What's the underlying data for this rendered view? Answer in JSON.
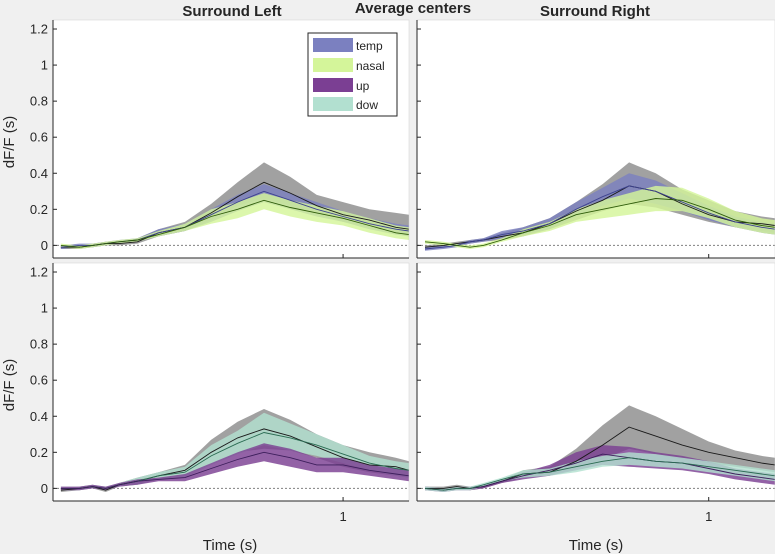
{
  "figure": {
    "title": "Average centers",
    "column_titles": [
      "Surround Left",
      "Surround Right"
    ],
    "xlabel": "Time (s)",
    "ylabel": "dF/F (s)",
    "xtick": 1,
    "xtick_label": "1",
    "yticks": [
      0,
      0.2,
      0.4,
      0.6,
      0.8,
      1,
      1.2
    ],
    "ytick_labels": [
      "0",
      "0.2",
      "0.4",
      "0.6",
      "0.8",
      "1",
      "1.2"
    ]
  },
  "legend": {
    "placement": "top-left of Surround Right column",
    "entries": [
      {
        "label": "temp",
        "color": "#7b80c0"
      },
      {
        "label": "nasal",
        "color": "#d4f59a"
      },
      {
        "label": "up",
        "color": "#7b3f93"
      },
      {
        "label": "dow",
        "color": "#b2e0d0"
      }
    ]
  },
  "chart_data": [
    {
      "type": "area",
      "panel": "top-left",
      "xlim": [
        -0.1,
        1.25
      ],
      "ylim": [
        -0.07,
        1.25
      ],
      "x": [
        -0.07,
        0.0,
        0.05,
        0.1,
        0.15,
        0.22,
        0.3,
        0.4,
        0.5,
        0.6,
        0.7,
        0.8,
        0.9,
        1.0,
        1.1,
        1.2,
        1.25
      ],
      "zero_line": true,
      "series": [
        {
          "color": "#1a1a1a",
          "band_color": "#8c8c8c",
          "mean": [
            -0.01,
            -0.01,
            0.0,
            0.01,
            0.01,
            0.02,
            0.07,
            0.1,
            0.18,
            0.27,
            0.35,
            0.29,
            0.22,
            0.17,
            0.14,
            0.1,
            0.09
          ],
          "lower": [
            -0.02,
            -0.02,
            -0.01,
            0.0,
            0.0,
            0.01,
            0.05,
            0.08,
            0.14,
            0.22,
            0.26,
            0.22,
            0.17,
            0.13,
            0.1,
            0.07,
            0.05
          ],
          "upper": [
            0.0,
            0.0,
            0.01,
            0.02,
            0.02,
            0.04,
            0.09,
            0.13,
            0.23,
            0.35,
            0.46,
            0.38,
            0.28,
            0.24,
            0.2,
            0.18,
            0.17
          ]
        },
        {
          "color": "#3d428f",
          "band_color": "#7b80c0",
          "mean": [
            -0.01,
            0.0,
            0.0,
            0.01,
            0.02,
            0.03,
            0.07,
            0.1,
            0.17,
            0.24,
            0.3,
            0.25,
            0.2,
            0.16,
            0.12,
            0.09,
            0.08
          ],
          "lower": [
            -0.02,
            -0.01,
            -0.01,
            0.0,
            0.01,
            0.02,
            0.05,
            0.08,
            0.13,
            0.19,
            0.24,
            0.2,
            0.16,
            0.13,
            0.09,
            0.06,
            0.05
          ],
          "upper": [
            0.0,
            0.01,
            0.01,
            0.02,
            0.03,
            0.04,
            0.09,
            0.12,
            0.2,
            0.28,
            0.34,
            0.29,
            0.24,
            0.19,
            0.15,
            0.12,
            0.11
          ]
        },
        {
          "color": "#2f5d0a",
          "band_color": "#d4f59a",
          "mean": [
            0.0,
            -0.01,
            0.0,
            0.01,
            0.02,
            0.03,
            0.06,
            0.1,
            0.16,
            0.2,
            0.25,
            0.21,
            0.18,
            0.15,
            0.11,
            0.07,
            0.06
          ],
          "lower": [
            -0.01,
            -0.02,
            -0.01,
            0.0,
            0.01,
            0.02,
            0.05,
            0.08,
            0.12,
            0.15,
            0.2,
            0.16,
            0.13,
            0.11,
            0.07,
            0.04,
            0.03
          ],
          "upper": [
            0.01,
            0.0,
            0.01,
            0.02,
            0.03,
            0.04,
            0.08,
            0.12,
            0.2,
            0.24,
            0.29,
            0.25,
            0.22,
            0.19,
            0.15,
            0.11,
            0.1
          ]
        }
      ]
    },
    {
      "type": "area",
      "panel": "top-right",
      "xlim": [
        -0.1,
        1.25
      ],
      "ylim": [
        -0.07,
        1.25
      ],
      "x": [
        -0.07,
        0.0,
        0.05,
        0.1,
        0.15,
        0.22,
        0.3,
        0.4,
        0.5,
        0.6,
        0.7,
        0.8,
        0.9,
        1.0,
        1.1,
        1.2,
        1.25
      ],
      "zero_line": true,
      "series": [
        {
          "color": "#1a1a1a",
          "band_color": "#8c8c8c",
          "mean": [
            -0.01,
            0.0,
            0.01,
            0.02,
            0.03,
            0.05,
            0.07,
            0.12,
            0.19,
            0.25,
            0.33,
            0.3,
            0.23,
            0.17,
            0.13,
            0.12,
            0.11
          ],
          "lower": [
            -0.02,
            -0.01,
            0.0,
            0.01,
            0.02,
            0.03,
            0.05,
            0.09,
            0.14,
            0.19,
            0.23,
            0.21,
            0.17,
            0.13,
            0.1,
            0.08,
            0.07
          ],
          "upper": [
            0.0,
            0.01,
            0.02,
            0.03,
            0.04,
            0.07,
            0.1,
            0.15,
            0.24,
            0.34,
            0.46,
            0.4,
            0.31,
            0.25,
            0.19,
            0.16,
            0.15
          ]
        },
        {
          "color": "#3d428f",
          "band_color": "#7b80c0",
          "mean": [
            -0.02,
            -0.01,
            0.0,
            0.02,
            0.03,
            0.06,
            0.08,
            0.12,
            0.2,
            0.27,
            0.33,
            0.3,
            0.24,
            0.18,
            0.13,
            0.1,
            0.09
          ],
          "lower": [
            -0.03,
            -0.02,
            -0.01,
            0.01,
            0.02,
            0.04,
            0.06,
            0.09,
            0.16,
            0.22,
            0.26,
            0.23,
            0.19,
            0.14,
            0.1,
            0.07,
            0.06
          ],
          "upper": [
            -0.01,
            0.0,
            0.01,
            0.03,
            0.04,
            0.08,
            0.1,
            0.15,
            0.24,
            0.32,
            0.4,
            0.36,
            0.29,
            0.22,
            0.16,
            0.13,
            0.12
          ]
        },
        {
          "color": "#2f5d0a",
          "band_color": "#d4f59a",
          "mean": [
            0.02,
            0.01,
            0.0,
            -0.01,
            0.0,
            0.03,
            0.07,
            0.11,
            0.17,
            0.2,
            0.23,
            0.26,
            0.25,
            0.2,
            0.14,
            0.11,
            0.1
          ],
          "lower": [
            0.01,
            0.0,
            -0.01,
            -0.02,
            -0.01,
            0.02,
            0.05,
            0.08,
            0.13,
            0.15,
            0.17,
            0.19,
            0.19,
            0.15,
            0.1,
            0.07,
            0.06
          ],
          "upper": [
            0.03,
            0.02,
            0.01,
            0.0,
            0.01,
            0.04,
            0.09,
            0.13,
            0.2,
            0.25,
            0.29,
            0.33,
            0.32,
            0.26,
            0.19,
            0.15,
            0.14
          ]
        }
      ]
    },
    {
      "type": "area",
      "panel": "bottom-left",
      "xlim": [
        -0.1,
        1.25
      ],
      "ylim": [
        -0.07,
        1.25
      ],
      "x": [
        -0.07,
        0.0,
        0.05,
        0.1,
        0.15,
        0.22,
        0.3,
        0.4,
        0.5,
        0.6,
        0.7,
        0.8,
        0.9,
        1.0,
        1.1,
        1.2,
        1.25
      ],
      "zero_line": true,
      "series": [
        {
          "color": "#1a1a1a",
          "band_color": "#8c8c8c",
          "mean": [
            -0.01,
            0.0,
            0.01,
            -0.01,
            0.02,
            0.04,
            0.07,
            0.1,
            0.2,
            0.28,
            0.33,
            0.29,
            0.23,
            0.17,
            0.13,
            0.12,
            0.1
          ],
          "lower": [
            -0.02,
            -0.01,
            0.0,
            -0.02,
            0.01,
            0.02,
            0.05,
            0.07,
            0.14,
            0.2,
            0.22,
            0.21,
            0.17,
            0.12,
            0.09,
            0.07,
            0.06
          ],
          "upper": [
            0.0,
            0.01,
            0.02,
            0.0,
            0.03,
            0.06,
            0.09,
            0.13,
            0.27,
            0.37,
            0.44,
            0.38,
            0.3,
            0.24,
            0.2,
            0.17,
            0.15
          ]
        },
        {
          "color": "#2a6b52",
          "band_color": "#b2e0d0",
          "mean": [
            0.0,
            0.0,
            0.01,
            0.0,
            0.02,
            0.04,
            0.07,
            0.09,
            0.18,
            0.25,
            0.31,
            0.28,
            0.24,
            0.19,
            0.14,
            0.11,
            0.1
          ],
          "lower": [
            -0.01,
            -0.01,
            0.0,
            -0.01,
            0.01,
            0.02,
            0.05,
            0.06,
            0.13,
            0.19,
            0.24,
            0.21,
            0.18,
            0.14,
            0.1,
            0.07,
            0.06
          ],
          "upper": [
            0.01,
            0.01,
            0.02,
            0.01,
            0.03,
            0.06,
            0.09,
            0.12,
            0.24,
            0.32,
            0.42,
            0.36,
            0.3,
            0.24,
            0.18,
            0.15,
            0.14
          ]
        },
        {
          "color": "#3d1f5c",
          "band_color": "#7b3f93",
          "mean": [
            0.0,
            0.0,
            0.01,
            0.0,
            0.02,
            0.04,
            0.05,
            0.06,
            0.11,
            0.16,
            0.2,
            0.17,
            0.13,
            0.13,
            0.1,
            0.08,
            0.07
          ],
          "lower": [
            -0.01,
            -0.01,
            0.0,
            -0.01,
            0.01,
            0.02,
            0.04,
            0.04,
            0.08,
            0.12,
            0.15,
            0.12,
            0.09,
            0.09,
            0.07,
            0.05,
            0.04
          ],
          "upper": [
            0.01,
            0.01,
            0.02,
            0.01,
            0.03,
            0.05,
            0.06,
            0.08,
            0.14,
            0.2,
            0.25,
            0.22,
            0.17,
            0.17,
            0.13,
            0.11,
            0.1
          ]
        }
      ]
    },
    {
      "type": "area",
      "panel": "bottom-right",
      "xlim": [
        -0.1,
        1.25
      ],
      "ylim": [
        -0.07,
        1.25
      ],
      "x": [
        -0.07,
        0.0,
        0.05,
        0.1,
        0.15,
        0.22,
        0.3,
        0.4,
        0.5,
        0.6,
        0.7,
        0.8,
        0.9,
        1.0,
        1.1,
        1.2,
        1.25
      ],
      "zero_line": true,
      "series": [
        {
          "color": "#1a1a1a",
          "band_color": "#8c8c8c",
          "mean": [
            0.0,
            0.0,
            0.01,
            0.0,
            0.01,
            0.04,
            0.08,
            0.09,
            0.15,
            0.24,
            0.34,
            0.29,
            0.24,
            0.2,
            0.17,
            0.14,
            0.13
          ],
          "lower": [
            -0.01,
            -0.01,
            0.0,
            -0.01,
            0.0,
            0.03,
            0.06,
            0.07,
            0.11,
            0.16,
            0.22,
            0.19,
            0.16,
            0.14,
            0.12,
            0.1,
            0.09
          ],
          "upper": [
            0.01,
            0.01,
            0.02,
            0.01,
            0.02,
            0.05,
            0.1,
            0.12,
            0.22,
            0.35,
            0.46,
            0.4,
            0.33,
            0.26,
            0.21,
            0.18,
            0.17
          ]
        },
        {
          "color": "#3d1f5c",
          "band_color": "#7b3f93",
          "mean": [
            0.0,
            -0.01,
            0.0,
            0.0,
            0.01,
            0.04,
            0.07,
            0.1,
            0.14,
            0.19,
            0.17,
            0.15,
            0.14,
            0.11,
            0.08,
            0.06,
            0.05
          ],
          "lower": [
            -0.01,
            -0.02,
            -0.01,
            -0.01,
            0.0,
            0.03,
            0.05,
            0.07,
            0.1,
            0.13,
            0.12,
            0.11,
            0.1,
            0.08,
            0.05,
            0.03,
            0.02
          ],
          "upper": [
            0.01,
            0.0,
            0.01,
            0.01,
            0.02,
            0.05,
            0.09,
            0.13,
            0.2,
            0.24,
            0.23,
            0.2,
            0.18,
            0.15,
            0.11,
            0.09,
            0.08
          ]
        },
        {
          "color": "#2a6b52",
          "band_color": "#b2e0d0",
          "mean": [
            0.0,
            -0.01,
            0.0,
            0.0,
            0.02,
            0.05,
            0.08,
            0.09,
            0.12,
            0.15,
            0.17,
            0.15,
            0.14,
            0.12,
            0.1,
            0.08,
            0.07
          ],
          "lower": [
            -0.01,
            -0.02,
            -0.01,
            -0.01,
            0.01,
            0.04,
            0.06,
            0.07,
            0.09,
            0.12,
            0.13,
            0.12,
            0.11,
            0.09,
            0.07,
            0.05,
            0.04
          ],
          "upper": [
            0.01,
            0.0,
            0.01,
            0.01,
            0.03,
            0.06,
            0.1,
            0.11,
            0.15,
            0.18,
            0.2,
            0.19,
            0.17,
            0.15,
            0.13,
            0.11,
            0.1
          ]
        }
      ]
    }
  ]
}
